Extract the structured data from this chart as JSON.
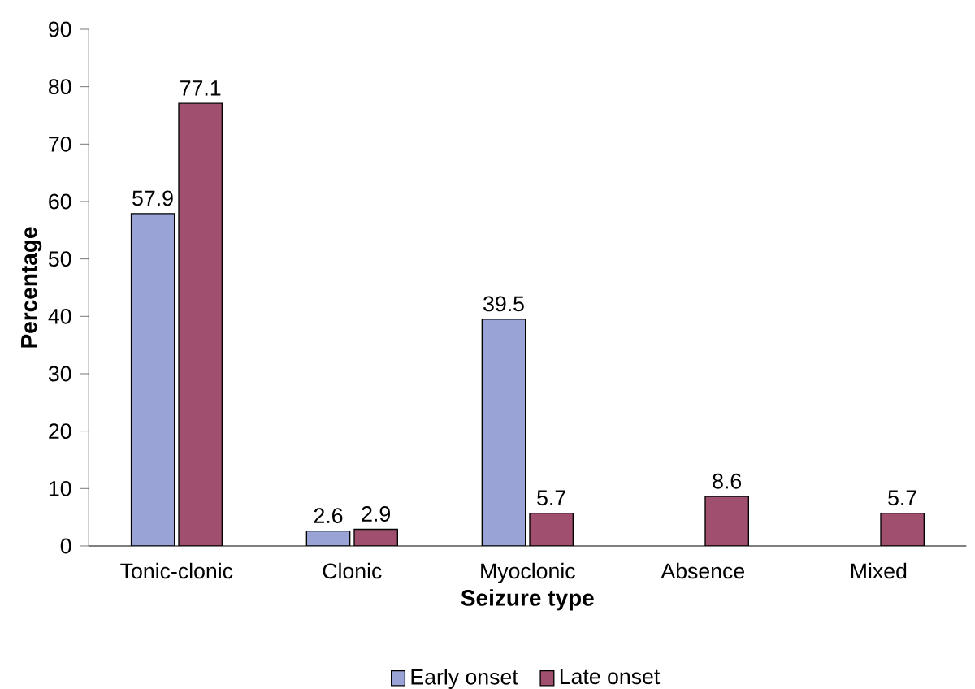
{
  "chart_data": {
    "type": "bar",
    "xlabel": "Seizure type",
    "ylabel": "Percentage",
    "categories": [
      "Tonic-clonic",
      "Clonic",
      "Myoclonic",
      "Absence",
      "Mixed"
    ],
    "series": [
      {
        "name": "Early onset",
        "color": "#99a3d6",
        "values": [
          57.9,
          2.6,
          39.5,
          null,
          null
        ]
      },
      {
        "name": "Late onset",
        "color": "#a0506e",
        "values": [
          77.1,
          2.9,
          5.7,
          8.6,
          5.7
        ]
      }
    ],
    "ylim": [
      0,
      90
    ],
    "yticks": [
      0,
      10,
      20,
      30,
      40,
      50,
      60,
      70,
      80,
      90
    ],
    "data_labels": true,
    "grid": false,
    "legend": "bottom"
  }
}
